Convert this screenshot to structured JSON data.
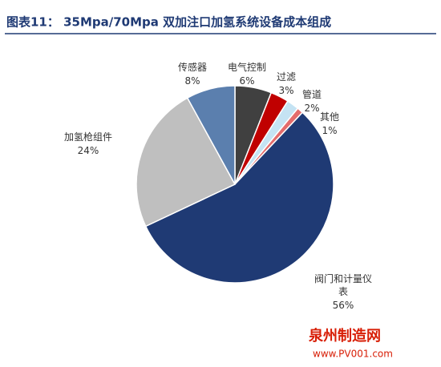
{
  "chart_data": {
    "type": "pie",
    "title": "图表11：  35Mpa/70Mpa 双加注口加氢系统设备成本组成",
    "categories": [
      "电气控制",
      "过滤",
      "管道",
      "其他",
      "阀门和计量仪表",
      "加氢枪组件",
      "传感器"
    ],
    "values": [
      6,
      3,
      2,
      1,
      56,
      24,
      8
    ],
    "value_labels": [
      "6%",
      "3%",
      "2%",
      "1%",
      "56%",
      "24%",
      "8%"
    ],
    "colors": [
      "#404040",
      "#c00000",
      "#c5e3f3",
      "#e46c6c",
      "#1f3a74",
      "#bfbfbf",
      "#5b7fae"
    ]
  },
  "watermark": {
    "name": "泉州制造网",
    "url": "www.PV001.com"
  }
}
